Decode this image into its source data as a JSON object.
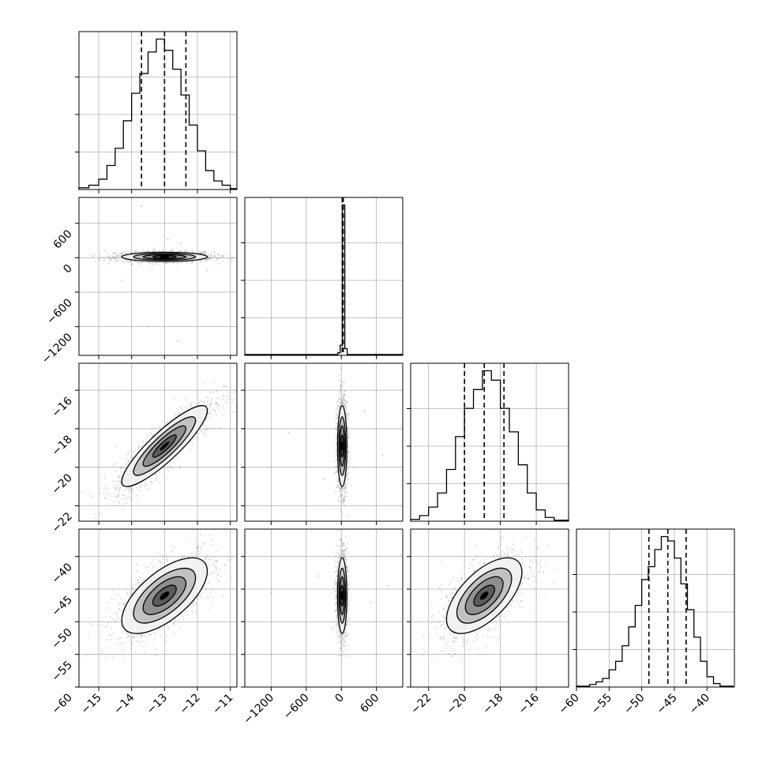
{
  "chart_data": {
    "type": "corner",
    "parameters": 4,
    "grid": true,
    "colors": {
      "line": "#000000",
      "grid": "#b0b0b0",
      "points": "#7f7f7f"
    },
    "panels": [
      {
        "id": "hist-p0",
        "kind": "histogram",
        "row": 0,
        "col": 0,
        "xlim": [
          -15.6,
          -10.8
        ],
        "quantiles": [
          -13.7,
          -13.0,
          -12.35
        ],
        "bins": [
          -15.6,
          -15.3,
          -15.0,
          -14.75,
          -14.5,
          -14.25,
          -14.0,
          -13.75,
          -13.5,
          -13.25,
          -13.0,
          -12.75,
          -12.5,
          -12.25,
          -12.0,
          -11.75,
          -11.5,
          -11.25,
          -11.0,
          -10.8
        ],
        "counts": [
          2,
          5,
          12,
          28,
          48,
          80,
          112,
          135,
          160,
          175,
          162,
          140,
          110,
          75,
          45,
          22,
          10,
          5,
          1
        ]
      },
      {
        "id": "scatter-p1-vs-p0",
        "kind": "scatter",
        "row": 1,
        "col": 0,
        "xlim": [
          -15.6,
          -10.8
        ],
        "ylim": [
          -1700,
          1050
        ],
        "yticks": [
          {
            "v": 600,
            "label": "600"
          },
          {
            "v": 0,
            "label": "0"
          },
          {
            "v": -600,
            "label": "−600"
          },
          {
            "v": -1200,
            "label": "−1200"
          }
        ],
        "center": [
          -13.0,
          15
        ],
        "sx": 0.65,
        "sy": 40,
        "rho": 0,
        "outliers": [
          [
            -13.7,
            900
          ],
          [
            -14.3,
            -400
          ],
          [
            -12.5,
            250
          ],
          [
            -13.5,
            -1200
          ],
          [
            -12.6,
            -1450
          ],
          [
            -14.8,
            120
          ],
          [
            -11.7,
            -220
          ],
          [
            -12.9,
            320
          ]
        ]
      },
      {
        "id": "hist-p1",
        "kind": "histogram",
        "row": 1,
        "col": 1,
        "xlim": [
          -1650,
          1050
        ],
        "quantiles": [
          18,
          25,
          33
        ],
        "bins": [
          -1650,
          -60,
          -20,
          20,
          60,
          100,
          1050
        ],
        "counts": [
          1,
          3,
          12,
          180,
          8,
          1
        ]
      },
      {
        "id": "scatter-p2-vs-p0",
        "kind": "scatter",
        "row": 2,
        "col": 0,
        "xlim": [
          -15.6,
          -10.8
        ],
        "ylim": [
          -22.8,
          -14.6
        ],
        "yticks": [
          {
            "v": -16,
            "label": "−16"
          },
          {
            "v": -18,
            "label": "−18"
          },
          {
            "v": -20,
            "label": "−20"
          },
          {
            "v": -22,
            "label": "−22"
          }
        ],
        "center": [
          -13.0,
          -18.9
        ],
        "sx": 0.65,
        "sy": 1.05,
        "rho": 0.88,
        "outliers": []
      },
      {
        "id": "scatter-p2-vs-p1",
        "kind": "scatter",
        "row": 2,
        "col": 1,
        "xlim": [
          -1650,
          1050
        ],
        "ylim": [
          -22.8,
          -14.6
        ],
        "center": [
          15,
          -18.9
        ],
        "sx": 40,
        "sy": 1.05,
        "rho": 0,
        "outliers": [
          [
            -900,
            -18.2
          ],
          [
            700,
            -19.4
          ],
          [
            -300,
            -20.6
          ],
          [
            400,
            -17.1
          ]
        ]
      },
      {
        "id": "hist-p2",
        "kind": "histogram",
        "row": 2,
        "col": 2,
        "xlim": [
          -23.0,
          -14.2
        ],
        "quantiles": [
          -20.0,
          -18.9,
          -17.8
        ],
        "bins": [
          -23.0,
          -22.5,
          -22.0,
          -21.5,
          -21.0,
          -20.5,
          -20.0,
          -19.5,
          -19.0,
          -18.5,
          -18.0,
          -17.5,
          -17.0,
          -16.5,
          -16.0,
          -15.5,
          -15.0,
          -14.2
        ],
        "counts": [
          2,
          6,
          15,
          30,
          55,
          90,
          120,
          140,
          160,
          150,
          120,
          95,
          60,
          30,
          12,
          4,
          1
        ]
      },
      {
        "id": "scatter-p3-vs-p0",
        "kind": "scatter",
        "row": 3,
        "col": 0,
        "xlim": [
          -15.6,
          -10.8
        ],
        "ylim": [
          -60,
          -35.8
        ],
        "yticks": [
          {
            "v": -40,
            "label": "−40"
          },
          {
            "v": -45,
            "label": "−45"
          },
          {
            "v": -50,
            "label": "−50"
          },
          {
            "v": -55,
            "label": "−55"
          },
          {
            "v": -60,
            "label": "−60"
          }
        ],
        "xticks": [
          {
            "v": -15,
            "label": "−15"
          },
          {
            "v": -14,
            "label": "−14"
          },
          {
            "v": -13,
            "label": "−13"
          },
          {
            "v": -12,
            "label": "−12"
          },
          {
            "v": -11,
            "label": "−11"
          }
        ],
        "center": [
          -13.0,
          -46.0
        ],
        "sx": 0.65,
        "sy": 2.9,
        "rho": 0.65,
        "outliers": []
      },
      {
        "id": "scatter-p3-vs-p1",
        "kind": "scatter",
        "row": 3,
        "col": 1,
        "xlim": [
          -1650,
          1050
        ],
        "ylim": [
          -60,
          -35.8
        ],
        "xticks": [
          {
            "v": -1200,
            "label": "−1200"
          },
          {
            "v": -600,
            "label": "−600"
          },
          {
            "v": 0,
            "label": "0"
          },
          {
            "v": 600,
            "label": "600"
          }
        ],
        "center": [
          15,
          -46.0
        ],
        "sx": 40,
        "sy": 2.9,
        "rho": 0,
        "outliers": [
          [
            -1200,
            -45.5
          ],
          [
            500,
            -47
          ],
          [
            -400,
            -43
          ],
          [
            800,
            -44.5
          ]
        ]
      },
      {
        "id": "scatter-p3-vs-p2",
        "kind": "scatter",
        "row": 3,
        "col": 2,
        "xlim": [
          -23.0,
          -14.2
        ],
        "ylim": [
          -60,
          -35.8
        ],
        "xticks": [
          {
            "v": -22,
            "label": "−22"
          },
          {
            "v": -20,
            "label": "−20"
          },
          {
            "v": -18,
            "label": "−18"
          },
          {
            "v": -16,
            "label": "−16"
          }
        ],
        "center": [
          -18.9,
          -46.0
        ],
        "sx": 1.05,
        "sy": 2.9,
        "rho": 0.62,
        "outliers": []
      },
      {
        "id": "hist-p3",
        "kind": "histogram",
        "row": 3,
        "col": 3,
        "xlim": [
          -60.0,
          -35.8
        ],
        "quantiles": [
          -48.9,
          -46.0,
          -43.2
        ],
        "xticks": [
          {
            "v": -60,
            "label": "−60"
          },
          {
            "v": -55,
            "label": "−55"
          },
          {
            "v": -50,
            "label": "−50"
          },
          {
            "v": -45,
            "label": "−45"
          },
          {
            "v": -40,
            "label": "−40"
          }
        ],
        "bins": [
          -60,
          -58,
          -57,
          -56,
          -55,
          -54,
          -53,
          -52,
          -51,
          -50,
          -49,
          -48,
          -47,
          -46,
          -45,
          -44,
          -43,
          -42,
          -41,
          -40,
          -39,
          -38,
          -36
        ],
        "counts": [
          1,
          3,
          6,
          10,
          20,
          30,
          48,
          70,
          95,
          125,
          140,
          160,
          175,
          170,
          150,
          120,
          90,
          58,
          30,
          12,
          4,
          1
        ]
      }
    ]
  }
}
